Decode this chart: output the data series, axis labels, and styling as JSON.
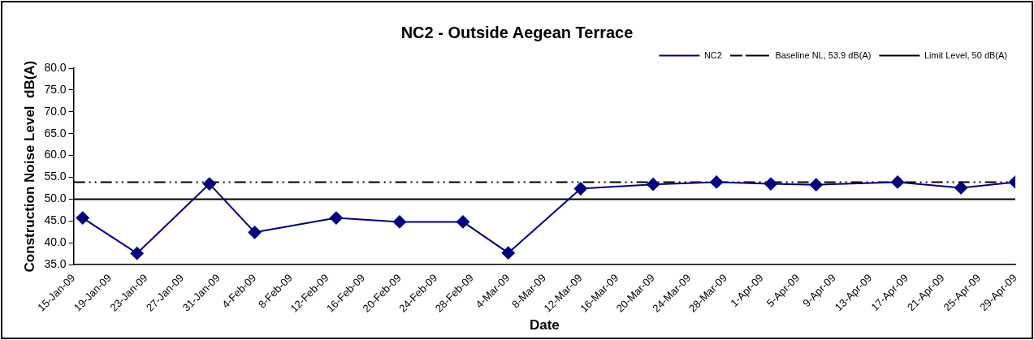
{
  "chart_data": {
    "type": "line",
    "title": "NC2 - Outside Aegean Terrace",
    "xlabel": "Date",
    "ylabel": "Construction Noise Level  dB(A)",
    "x": [
      "--01-16",
      "--01-22",
      "--01-30",
      "--02-04",
      "--02-13",
      "--02-20",
      "--02-27",
      "--03-04",
      "--03-12",
      "--03-20",
      "--03-27",
      "--04-02",
      "--04-07",
      "--04-16",
      "--04-23",
      "--04-29"
    ],
    "series": [
      {
        "name": "NC2",
        "color": "#000080",
        "values": [
          45.7,
          37.6,
          53.5,
          42.4,
          45.7,
          44.8,
          44.8,
          37.7,
          52.4,
          53.4,
          53.9,
          53.5,
          53.3,
          53.9,
          52.6,
          53.9
        ]
      }
    ],
    "ref_lines": [
      {
        "axis": "y",
        "value": 53.9,
        "label": "Baseline NL, 53.9 dB(A)",
        "color": "#000000",
        "line_style": "dashed"
      },
      {
        "axis": "y",
        "value": 50,
        "label": "Limit Level, 50 dB(A)",
        "color": "#000000",
        "line_style": "solid"
      }
    ],
    "xlim": [
      "--01-15",
      "--04-29"
    ],
    "xticks": [
      {
        "value": "--01-15",
        "label": "15-Jan-09"
      },
      {
        "value": "--01-19",
        "label": "19-Jan-09"
      },
      {
        "value": "--01-23",
        "label": "23-Jan-09"
      },
      {
        "value": "--01-27",
        "label": "27-Jan-09"
      },
      {
        "value": "--01-31",
        "label": "31-Jan-09"
      },
      {
        "value": "--02-04",
        "label": "4-Feb-09"
      },
      {
        "value": "--02-08",
        "label": "8-Feb-09"
      },
      {
        "value": "--02-12",
        "label": "12-Feb-09"
      },
      {
        "value": "--02-16",
        "label": "16-Feb-09"
      },
      {
        "value": "--02-20",
        "label": "20-Feb-09"
      },
      {
        "value": "--02-24",
        "label": "24-Feb-09"
      },
      {
        "value": "--02-28",
        "label": "28-Feb-09"
      },
      {
        "value": "--03-04",
        "label": "4-Mar-09"
      },
      {
        "value": "--03-08",
        "label": "8-Mar-09"
      },
      {
        "value": "--03-12",
        "label": "12-Mar-09"
      },
      {
        "value": "--03-16",
        "label": "16-Mar-09"
      },
      {
        "value": "--03-20",
        "label": "20-Mar-09"
      },
      {
        "value": "--03-24",
        "label": "24-Mar-09"
      },
      {
        "value": "--03-28",
        "label": "28-Mar-09"
      },
      {
        "value": "--04-01",
        "label": "1-Apr-09"
      },
      {
        "value": "--04-05",
        "label": "5-Apr-09"
      },
      {
        "value": "--04-09",
        "label": "9-Apr-09"
      },
      {
        "value": "--04-13",
        "label": "13-Apr-09"
      },
      {
        "value": "--04-17",
        "label": "17-Apr-09"
      },
      {
        "value": "--04-21",
        "label": "21-Apr-09"
      },
      {
        "value": "--04-25",
        "label": "25-Apr-09"
      },
      {
        "value": "--04-29",
        "label": "29-Apr-09"
      }
    ],
    "ylim": [
      35,
      80
    ],
    "yticks": [
      {
        "value": 35,
        "label": "35.0"
      },
      {
        "value": 40,
        "label": "40.0"
      },
      {
        "value": 45,
        "label": "45.0"
      },
      {
        "value": 50,
        "label": "50.0"
      },
      {
        "value": 55,
        "label": "55.0"
      },
      {
        "value": 60,
        "label": "60.0"
      },
      {
        "value": 65,
        "label": "65.0"
      },
      {
        "value": 70,
        "label": "70.0"
      },
      {
        "value": 75,
        "label": "75.0"
      },
      {
        "value": 80,
        "label": "80.0"
      }
    ],
    "grid": false,
    "legend": "top right",
    "marker": "diamond",
    "line_style": "solid"
  }
}
